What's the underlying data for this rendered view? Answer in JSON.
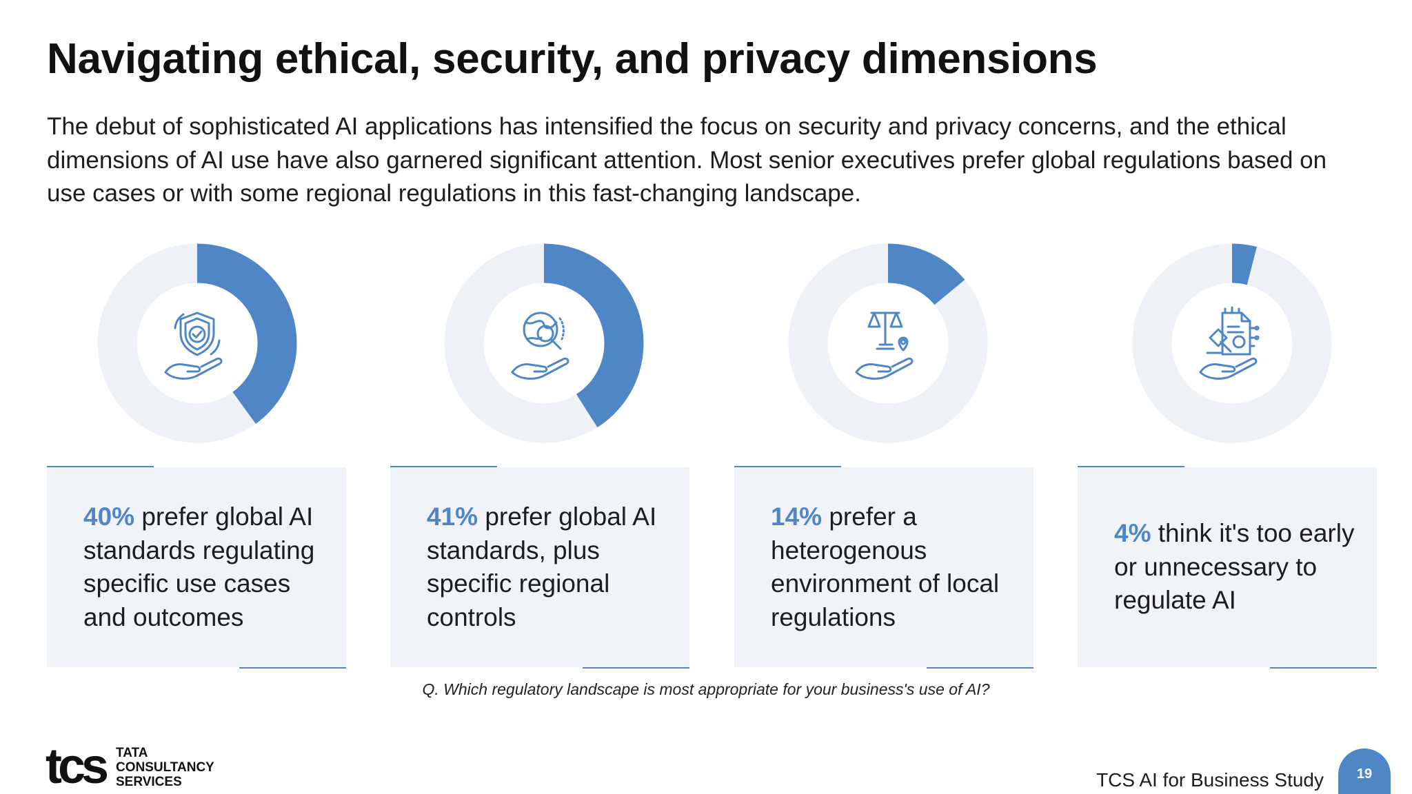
{
  "title": "Navigating ethical, security, and privacy dimensions",
  "intro": "The debut of sophisticated AI applications has intensified the focus on security and privacy concerns, and the ethical dimensions of AI use have also garnered significant attention. Most senior executives prefer global regulations based on use cases or with some regional regulations in this fast-changing landscape.",
  "colors": {
    "accent": "#4f86c6",
    "ring_track": "#eef1f6",
    "card_bg": "#f0f3f8"
  },
  "chart_data": [
    {
      "type": "pie",
      "values": [
        40
      ],
      "icon": "shield-check-hand-icon"
    },
    {
      "type": "pie",
      "values": [
        41
      ],
      "icon": "globe-magnifier-hand-icon"
    },
    {
      "type": "pie",
      "values": [
        14
      ],
      "icon": "scales-location-hand-icon"
    },
    {
      "type": "pie",
      "values": [
        4
      ],
      "icon": "gavel-document-hand-icon"
    }
  ],
  "cards": [
    {
      "pct": "40%",
      "text": " prefer global AI standards regulating specific use cases and outcomes"
    },
    {
      "pct": "41%",
      "text": " prefer global AI standards, plus specific regional controls"
    },
    {
      "pct": "14%",
      "text": " prefer a heterogenous environment of local regulations"
    },
    {
      "pct": "4%",
      "text": " think it's too early or unnecessary to regulate AI"
    }
  ],
  "question": "Q. Which regulatory landscape is most appropriate for your business's use of AI?",
  "footer": {
    "logo_mark": "tcs",
    "logo_words": [
      "TATA",
      "CONSULTANCY",
      "SERVICES"
    ],
    "study_name": "TCS AI for Business Study",
    "page_number": "19"
  }
}
